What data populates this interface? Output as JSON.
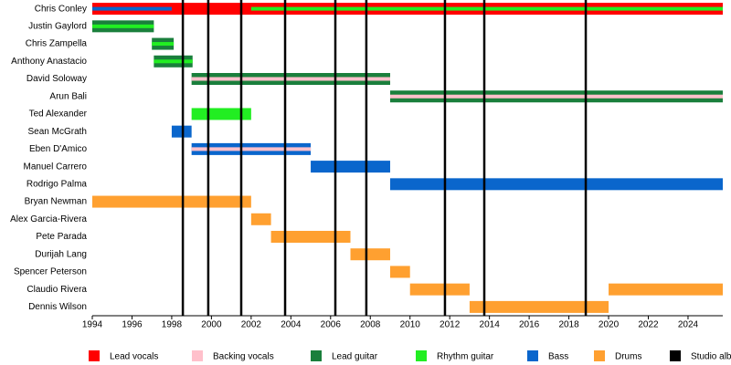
{
  "chart_data": {
    "type": "timeline",
    "categories": [
      "Chris Conley",
      "Justin Gaylord",
      "Chris Zampella",
      "Anthony Anastacio",
      "David Soloway",
      "Arun Bali",
      "Ted Alexander",
      "Sean McGrath",
      "Eben D'Amico",
      "Manuel Carrero",
      "Rodrigo Palma",
      "Bryan Newman",
      "Alex Garcia-Rivera",
      "Pete Parada",
      "Durijah Lang",
      "Spencer Peterson",
      "Claudio Rivera",
      "Dennis Wilson"
    ],
    "series": [
      {
        "name": "Lead vocals",
        "color": "#ff0000",
        "values": [
          [
            [
              1994,
              2025.75
            ]
          ],
          null,
          null,
          null,
          null,
          null,
          null,
          null,
          null,
          null,
          null,
          null,
          null,
          null,
          null,
          null,
          null,
          null
        ]
      },
      {
        "name": "Backing vocals",
        "color": "#ffc0cb",
        "values": [
          null,
          null,
          null,
          null,
          [
            [
              1999,
              2009
            ]
          ],
          [
            [
              2009,
              2025.75
            ]
          ],
          null,
          null,
          [
            [
              1999,
              2005
            ]
          ],
          null,
          null,
          null,
          null,
          null,
          null,
          null,
          null,
          null
        ]
      },
      {
        "name": "Lead guitar",
        "color": "#1a7f3c",
        "values": [
          null,
          [
            [
              1994,
              1997.1
            ]
          ],
          [
            [
              1997,
              1998.1
            ]
          ],
          [
            [
              1997.1,
              1999.05
            ]
          ],
          [
            [
              1999,
              2009
            ]
          ],
          [
            [
              2009,
              2025.75
            ]
          ],
          null,
          null,
          null,
          null,
          null,
          null,
          null,
          null,
          null,
          null,
          null,
          null
        ]
      },
      {
        "name": "Rhythm guitar",
        "color": "#22ee22",
        "values": [
          [
            [
              2002,
              2025.75
            ]
          ],
          [
            [
              1994,
              1997.1
            ]
          ],
          [
            [
              1997,
              1998.1
            ]
          ],
          [
            [
              1997.1,
              1999.05
            ]
          ],
          null,
          null,
          [
            [
              1999,
              2002
            ]
          ],
          null,
          null,
          null,
          null,
          null,
          null,
          null,
          null,
          null,
          null,
          null
        ]
      },
      {
        "name": "Bass",
        "color": "#0a66cc",
        "values": [
          [
            [
              1994,
              1998
            ]
          ],
          null,
          null,
          null,
          null,
          null,
          null,
          [
            [
              1998,
              1999
            ]
          ],
          [
            [
              1999,
              2005
            ]
          ],
          [
            [
              2005,
              2009
            ]
          ],
          [
            [
              2009,
              2025.75
            ]
          ],
          null,
          null,
          null,
          null,
          null,
          null,
          null
        ]
      },
      {
        "name": "Drums",
        "color": "#ffa030",
        "values": [
          null,
          null,
          null,
          null,
          null,
          null,
          null,
          null,
          null,
          null,
          null,
          [
            [
              1994,
              2002
            ]
          ],
          [
            [
              2002,
              2003
            ]
          ],
          [
            [
              2003,
              2007
            ]
          ],
          [
            [
              2007,
              2009
            ]
          ],
          [
            [
              2009,
              2010
            ]
          ],
          [
            [
              2010,
              2013
            ],
            [
              2020,
              2025.75
            ]
          ],
          [
            [
              2013,
              2020
            ]
          ]
        ]
      }
    ],
    "events": {
      "name": "Studio albums",
      "color": "#000000",
      "values": [
        1998.56,
        1999.84,
        2001.5,
        2003.71,
        2006.24,
        2007.8,
        2011.76,
        2013.74,
        2018.85
      ]
    },
    "xlim": [
      1994,
      2025.75
    ],
    "xticks": [
      1994,
      1996,
      1998,
      2000,
      2002,
      2004,
      2006,
      2008,
      2010,
      2012,
      2014,
      2016,
      2018,
      2020,
      2022,
      2024
    ]
  }
}
